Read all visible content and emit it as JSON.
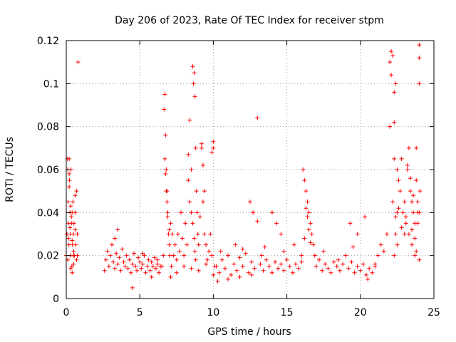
{
  "chart_data": {
    "type": "scatter",
    "title": "Day 206 of 2023, Rate Of TEC Index for receiver stpm",
    "xlabel": "GPS time / hours",
    "ylabel": "ROTI / TECUs",
    "xlim": [
      0,
      25
    ],
    "ylim": [
      0,
      0.12
    ],
    "xticks": [
      "0",
      "5",
      "10",
      "15",
      "20",
      "25"
    ],
    "xtick_values": [
      0,
      5,
      10,
      15,
      20,
      25
    ],
    "yticks": [
      "0",
      "0.02",
      "0.04",
      "0.06",
      "0.08",
      "0.1",
      "0.12"
    ],
    "ytick_values": [
      0,
      0.02,
      0.04,
      0.06,
      0.08,
      0.1,
      0.12
    ],
    "grid": true,
    "marker": "plus",
    "color": "#ff0000",
    "series": [
      {
        "x": [
          0.0,
          0.05,
          0.08,
          0.1,
          0.12,
          0.15,
          0.18,
          0.2,
          0.22,
          0.25,
          0.28,
          0.3,
          0.32,
          0.35,
          0.38,
          0.4,
          0.42,
          0.45,
          0.48,
          0.5,
          0.52,
          0.55,
          0.6,
          0.65,
          0.7,
          0.75,
          0.8,
          0.1,
          0.15,
          0.2,
          0.25,
          0.3,
          0.35,
          0.4,
          0.5,
          0.6,
          0.7,
          0.2,
          0.3,
          0.4,
          0.5,
          0.6,
          0.75,
          2.6,
          2.7,
          2.8,
          2.9,
          3.0,
          3.1,
          3.2,
          3.3,
          3.4,
          3.5,
          3.6,
          3.7,
          3.8,
          3.9,
          4.0,
          4.1,
          4.2,
          4.3,
          4.4,
          4.5,
          4.6,
          4.7,
          4.8,
          4.9,
          5.0,
          5.1,
          5.2,
          5.3,
          5.4,
          5.5,
          5.6,
          5.7,
          5.8,
          5.9,
          6.0,
          6.1,
          6.2,
          6.3,
          6.4,
          3.3,
          3.5,
          4.5,
          5.2,
          5.8,
          6.2,
          6.5,
          6.6,
          6.65,
          6.7,
          6.75,
          6.8,
          6.85,
          6.9,
          6.95,
          7.0,
          7.05,
          7.1,
          7.15,
          7.2,
          7.3,
          7.4,
          7.5,
          7.6,
          7.7,
          7.8,
          7.9,
          8.0,
          8.1,
          8.2,
          8.3,
          8.4,
          8.5,
          8.6,
          8.65,
          8.7,
          8.75,
          8.8,
          8.85,
          8.9,
          8.95,
          9.0,
          9.1,
          9.2,
          9.3,
          9.4,
          9.5,
          9.6,
          9.7,
          9.8,
          9.9,
          10.0,
          10.1,
          6.7,
          6.75,
          6.8,
          6.85,
          6.9,
          7.0,
          8.3,
          8.4,
          8.5,
          8.6,
          8.7,
          8.75,
          8.8,
          9.2,
          9.3,
          9.4,
          9.9,
          10.0,
          7.1,
          7.5,
          8.0,
          8.5,
          9.0,
          9.5,
          10.0,
          10.2,
          10.4,
          10.6,
          10.8,
          11.0,
          11.2,
          11.4,
          11.6,
          11.8,
          12.0,
          12.2,
          12.4,
          12.6,
          12.8,
          13.0,
          13.2,
          13.4,
          13.6,
          13.8,
          14.0,
          14.2,
          14.4,
          14.6,
          14.8,
          15.0,
          15.2,
          15.4,
          15.6,
          15.8,
          16.0,
          12.5,
          12.7,
          13.0,
          13.5,
          14.0,
          14.3,
          14.6,
          15.5,
          10.5,
          11.5,
          12.0,
          13.3,
          14.8,
          10.3,
          11.0,
          11.8,
          12.6,
          16.0,
          16.1,
          16.2,
          16.3,
          16.4,
          16.5,
          16.6,
          16.7,
          16.8,
          16.9,
          17.0,
          17.2,
          17.4,
          17.6,
          17.8,
          18.0,
          18.2,
          18.4,
          18.6,
          18.8,
          19.0,
          19.2,
          19.4,
          19.6,
          19.8,
          20.0,
          20.2,
          20.4,
          20.6,
          20.8,
          21.0,
          16.2,
          16.3,
          16.4,
          16.5,
          16.6,
          19.3,
          19.8,
          20.3,
          17.5,
          18.5,
          19.5,
          20.5,
          21.0,
          21.2,
          21.4,
          21.6,
          21.8,
          22.0,
          22.1,
          22.2,
          22.3,
          22.4,
          22.5,
          22.6,
          22.7,
          22.8,
          22.9,
          23.0,
          23.1,
          23.2,
          23.3,
          23.4,
          23.5,
          23.6,
          23.7,
          23.8,
          23.9,
          24.0,
          24.05,
          22.0,
          22.1,
          22.2,
          22.3,
          22.5,
          23.0,
          23.2,
          23.4,
          23.6,
          23.8,
          23.9,
          24.0,
          24.0,
          24.0,
          22.3,
          22.4,
          22.5,
          22.3,
          22.4,
          23.5,
          23.7,
          23.8,
          24.0,
          22.6,
          22.8,
          23.1,
          23.3,
          23.5,
          23.7,
          23.9
        ],
        "y": [
          0.02,
          0.03,
          0.065,
          0.06,
          0.045,
          0.035,
          0.025,
          0.065,
          0.055,
          0.04,
          0.03,
          0.02,
          0.06,
          0.035,
          0.015,
          0.04,
          0.025,
          0.045,
          0.03,
          0.02,
          0.035,
          0.02,
          0.04,
          0.025,
          0.05,
          0.03,
          0.11,
          0.018,
          0.028,
          0.052,
          0.033,
          0.014,
          0.038,
          0.012,
          0.022,
          0.048,
          0.018,
          0.058,
          0.043,
          0.027,
          0.016,
          0.032,
          0.02,
          0.013,
          0.018,
          0.022,
          0.015,
          0.02,
          0.025,
          0.017,
          0.014,
          0.021,
          0.016,
          0.019,
          0.013,
          0.023,
          0.017,
          0.015,
          0.02,
          0.014,
          0.018,
          0.012,
          0.016,
          0.021,
          0.015,
          0.013,
          0.019,
          0.017,
          0.014,
          0.016,
          0.02,
          0.012,
          0.015,
          0.018,
          0.013,
          0.017,
          0.015,
          0.019,
          0.014,
          0.016,
          0.012,
          0.015,
          0.028,
          0.032,
          0.005,
          0.021,
          0.01,
          0.018,
          0.015,
          0.02,
          0.088,
          0.095,
          0.076,
          0.06,
          0.05,
          0.04,
          0.03,
          0.025,
          0.02,
          0.035,
          0.015,
          0.03,
          0.02,
          0.025,
          0.018,
          0.03,
          0.022,
          0.04,
          0.028,
          0.02,
          0.035,
          0.025,
          0.055,
          0.045,
          0.06,
          0.108,
          0.1,
          0.105,
          0.094,
          0.07,
          0.05,
          0.04,
          0.03,
          0.025,
          0.038,
          0.07,
          0.045,
          0.03,
          0.025,
          0.018,
          0.022,
          0.03,
          0.02,
          0.073,
          0.015,
          0.065,
          0.058,
          0.05,
          0.045,
          0.038,
          0.032,
          0.067,
          0.083,
          0.04,
          0.035,
          0.028,
          0.022,
          0.018,
          0.072,
          0.062,
          0.05,
          0.068,
          0.07,
          0.01,
          0.012,
          0.015,
          0.014,
          0.013,
          0.016,
          0.011,
          0.015,
          0.012,
          0.018,
          0.014,
          0.02,
          0.011,
          0.016,
          0.013,
          0.019,
          0.015,
          0.021,
          0.012,
          0.017,
          0.014,
          0.084,
          0.016,
          0.013,
          0.018,
          0.015,
          0.012,
          0.017,
          0.014,
          0.016,
          0.013,
          0.018,
          0.015,
          0.012,
          0.016,
          0.014,
          0.017,
          0.045,
          0.04,
          0.036,
          0.024,
          0.04,
          0.035,
          0.03,
          0.025,
          0.022,
          0.025,
          0.023,
          0.02,
          0.022,
          0.008,
          0.009,
          0.01,
          0.011,
          0.02,
          0.06,
          0.055,
          0.05,
          0.045,
          0.04,
          0.035,
          0.03,
          0.025,
          0.02,
          0.015,
          0.018,
          0.013,
          0.016,
          0.014,
          0.012,
          0.017,
          0.015,
          0.013,
          0.016,
          0.02,
          0.014,
          0.017,
          0.012,
          0.015,
          0.013,
          0.016,
          0.011,
          0.014,
          0.012,
          0.015,
          0.028,
          0.042,
          0.038,
          0.032,
          0.026,
          0.035,
          0.03,
          0.038,
          0.022,
          0.018,
          0.024,
          0.009,
          0.016,
          0.02,
          0.025,
          0.022,
          0.03,
          0.11,
          0.115,
          0.113,
          0.096,
          0.1,
          0.06,
          0.055,
          0.05,
          0.065,
          0.04,
          0.045,
          0.035,
          0.06,
          0.07,
          0.05,
          0.045,
          0.04,
          0.035,
          0.055,
          0.045,
          0.04,
          0.05,
          0.08,
          0.104,
          0.045,
          0.065,
          0.04,
          0.03,
          0.062,
          0.056,
          0.048,
          0.07,
          0.04,
          0.112,
          0.118,
          0.1,
          0.082,
          0.03,
          0.025,
          0.02,
          0.038,
          0.032,
          0.028,
          0.022,
          0.018,
          0.042,
          0.033,
          0.038,
          0.03,
          0.025,
          0.02,
          0.035
        ]
      }
    ]
  }
}
